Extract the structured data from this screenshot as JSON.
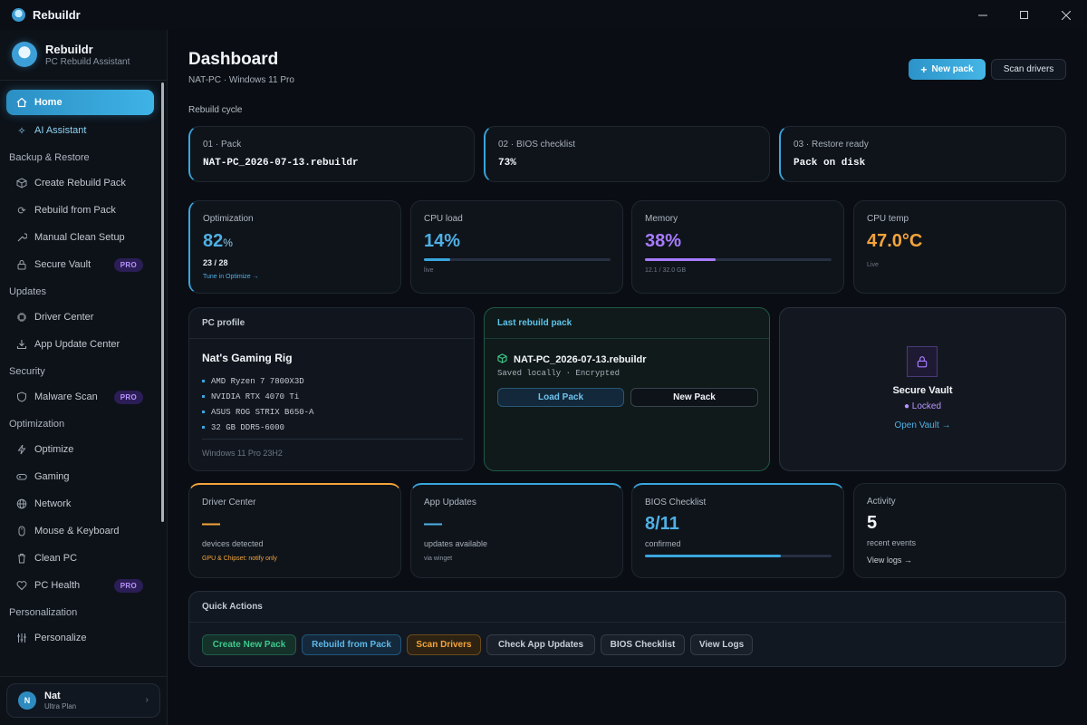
{
  "window": {
    "title": "Rebuildr",
    "controls": [
      "—",
      "☐",
      "✕"
    ]
  },
  "brand": {
    "name": "Rebuildr",
    "subtitle": "PC Rebuild Assistant"
  },
  "sidebar": {
    "home": "Home",
    "ai": "AI Assistant",
    "sections": [
      {
        "label": "Backup & Restore",
        "items": [
          "Create Rebuild Pack",
          "Rebuild from Pack",
          "Manual Clean Setup",
          "Secure Vault"
        ]
      },
      {
        "label": "Updates",
        "items": [
          "Driver Center",
          "App Update Center"
        ]
      },
      {
        "label": "Security",
        "items": [
          "Malware Scan"
        ]
      },
      {
        "label": "Optimization",
        "items": [
          "Optimize",
          "Gaming",
          "Network",
          "Mouse & Keyboard",
          "Clean PC",
          "PC Health"
        ]
      },
      {
        "label": "Personalization",
        "items": [
          "Personalize"
        ]
      }
    ],
    "pro_label": "PRO",
    "user": {
      "initial": "N",
      "name": "Nat",
      "plan": "Ultra Plan"
    }
  },
  "header": {
    "title": "Dashboard",
    "subtitle": "NAT-PC · Windows 11 Pro",
    "new_pack": "New pack",
    "scan_drivers": "Scan drivers"
  },
  "cycle": {
    "label": "Rebuild cycle",
    "steps": [
      {
        "label": "01 · Pack",
        "value": "NAT-PC_2026-07-13.rebuildr"
      },
      {
        "label": "02 · BIOS checklist",
        "value": "73%"
      },
      {
        "label": "03 · Restore ready",
        "value": "Pack on disk"
      }
    ]
  },
  "stats": {
    "optimization": {
      "label": "Optimization",
      "value": "82",
      "unit": "%",
      "count": "23 / 28",
      "link": "Tune in Optimize →"
    },
    "cpu": {
      "label": "CPU load",
      "value": "14%",
      "note": "live",
      "level": 0.14
    },
    "memory": {
      "label": "Memory",
      "value": "38%",
      "note": "12.1 / 32.0 GB",
      "level": 0.38
    },
    "temp": {
      "label": "CPU temp",
      "value": "47.0°C",
      "note": "Live"
    }
  },
  "profile": {
    "title": "PC profile",
    "name": "Nat's Gaming Rig",
    "specs": [
      "AMD Ryzen 7 7800X3D",
      "NVIDIA RTX 4070 Ti",
      "ASUS ROG STRIX B650-A",
      "32 GB DDR5-6000"
    ],
    "os": "Windows 11 Pro 23H2"
  },
  "last_pack": {
    "title": "Last rebuild pack",
    "name": "NAT-PC_2026-07-13.rebuildr",
    "status": "Saved locally · Encrypted",
    "load": "Load Pack",
    "new": "New Pack"
  },
  "vault": {
    "title": "Secure Vault",
    "status": "● Locked",
    "link": "Open Vault →"
  },
  "tiles": {
    "driver": {
      "label": "Driver Center",
      "value": "—",
      "desc": "devices detected",
      "note": "GPU & Chipset: notify only"
    },
    "apps": {
      "label": "App Updates",
      "value": "—",
      "desc": "updates available",
      "note": "via winget"
    },
    "bios": {
      "label": "BIOS Checklist",
      "value": "8/11",
      "desc": "confirmed",
      "level": 0.727
    },
    "activity": {
      "label": "Activity",
      "value": "5",
      "desc": "recent events",
      "link": "View logs →"
    }
  },
  "quick": {
    "title": "Quick Actions",
    "buttons": [
      "Create New Pack",
      "Rebuild from Pack",
      "Scan Drivers",
      "Check App Updates",
      "BIOS Checklist",
      "View Logs"
    ]
  },
  "colors": {
    "accent": "#3aa6dd",
    "purple": "#a77bff",
    "orange": "#f5a43a",
    "green": "#3ec98c"
  }
}
